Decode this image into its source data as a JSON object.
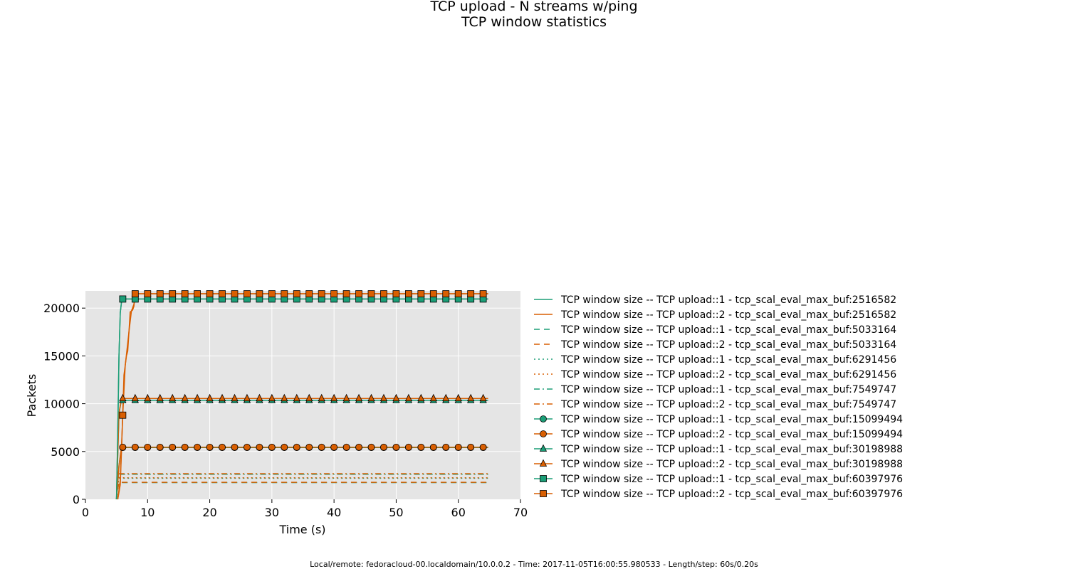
{
  "title": "TCP upload - N streams w/ping",
  "subtitle": "TCP window statistics",
  "footer": "Local/remote: fedoracloud-00.localdomain/10.0.0.2 - Time: 2017-11-05T16:00:55.980533 - Length/step: 60s/0.20s",
  "colors": {
    "teal": "#1b9e77",
    "orange": "#d95f02",
    "plot_bg": "#e5e5e5",
    "grid": "#ffffff"
  },
  "chart_data": {
    "type": "line",
    "xlabel": "Time (s)",
    "ylabel": "Packets",
    "xlim": [
      0,
      70
    ],
    "ylim": [
      0,
      21800
    ],
    "xticks": [
      0,
      10,
      20,
      30,
      40,
      50,
      60,
      70
    ],
    "yticks": [
      0,
      5000,
      10000,
      15000,
      20000
    ],
    "grid": true,
    "legend_position": "right-outside",
    "series": [
      {
        "name": "TCP window size -- TCP upload::1 - tcp_scal_eval_max_buf:2516582",
        "color": "#1b9e77",
        "dash": "solid",
        "marker": "none",
        "steady": 20950,
        "points": [
          [
            5,
            0
          ],
          [
            5.2,
            7000
          ],
          [
            5.4,
            15000
          ],
          [
            5.6,
            19500
          ],
          [
            5.8,
            20600
          ],
          [
            6,
            20950
          ],
          [
            64.8,
            20950
          ]
        ]
      },
      {
        "name": "TCP window size -- TCP upload::2 - tcp_scal_eval_max_buf:2516582",
        "color": "#d95f02",
        "dash": "solid",
        "marker": "none",
        "steady": 21500,
        "points": [
          [
            5.2,
            0
          ],
          [
            5.6,
            1500
          ],
          [
            5.8,
            5000
          ],
          [
            6,
            9000
          ],
          [
            6.2,
            13000
          ],
          [
            6.6,
            15000
          ],
          [
            6.8,
            15500
          ],
          [
            7,
            17500
          ],
          [
            7.2,
            19600
          ],
          [
            7.6,
            19800
          ],
          [
            7.8,
            20200
          ],
          [
            8,
            21500
          ],
          [
            64.8,
            21500
          ]
        ]
      },
      {
        "name": "TCP window size -- TCP upload::1 - tcp_scal_eval_max_buf:5033164",
        "color": "#1b9e77",
        "dash": "dash",
        "marker": "none",
        "steady": 1750,
        "points": [
          [
            5,
            0
          ],
          [
            5.2,
            1100
          ],
          [
            5.4,
            1750
          ],
          [
            64.8,
            1750
          ]
        ]
      },
      {
        "name": "TCP window size -- TCP upload::2 - tcp_scal_eval_max_buf:5033164",
        "color": "#d95f02",
        "dash": "dash",
        "marker": "none",
        "steady": 1780,
        "points": [
          [
            5,
            0
          ],
          [
            5.2,
            1100
          ],
          [
            5.4,
            1780
          ],
          [
            64.8,
            1780
          ]
        ]
      },
      {
        "name": "TCP window size -- TCP upload::1 - tcp_scal_eval_max_buf:6291456",
        "color": "#1b9e77",
        "dash": "dot",
        "marker": "none",
        "steady": 2200,
        "points": [
          [
            5,
            0
          ],
          [
            5.2,
            1500
          ],
          [
            5.4,
            2200
          ],
          [
            64.8,
            2200
          ]
        ]
      },
      {
        "name": "TCP window size -- TCP upload::2 - tcp_scal_eval_max_buf:6291456",
        "color": "#d95f02",
        "dash": "dot",
        "marker": "none",
        "steady": 2250,
        "points": [
          [
            5,
            0
          ],
          [
            5.2,
            1500
          ],
          [
            5.4,
            2250
          ],
          [
            64.8,
            2250
          ]
        ]
      },
      {
        "name": "TCP window size -- TCP upload::1 - tcp_scal_eval_max_buf:7549747",
        "color": "#1b9e77",
        "dash": "dashdot",
        "marker": "none",
        "steady": 2620,
        "points": [
          [
            5,
            0
          ],
          [
            5.2,
            1800
          ],
          [
            5.4,
            2620
          ],
          [
            64.8,
            2620
          ]
        ]
      },
      {
        "name": "TCP window size -- TCP upload::2 - tcp_scal_eval_max_buf:7549747",
        "color": "#d95f02",
        "dash": "dashdot",
        "marker": "none",
        "steady": 2680,
        "points": [
          [
            5,
            0
          ],
          [
            5.2,
            1800
          ],
          [
            5.4,
            2680
          ],
          [
            64.8,
            2680
          ]
        ]
      },
      {
        "name": "TCP window size -- TCP upload::1 - tcp_scal_eval_max_buf:15099494",
        "color": "#1b9e77",
        "dash": "solid",
        "marker": "circle",
        "steady": 5420,
        "points": [
          [
            5,
            0
          ],
          [
            5.4,
            3500
          ],
          [
            5.8,
            5420
          ],
          [
            64.8,
            5420
          ]
        ]
      },
      {
        "name": "TCP window size -- TCP upload::2 - tcp_scal_eval_max_buf:15099494",
        "color": "#d95f02",
        "dash": "solid",
        "marker": "circle",
        "steady": 5450,
        "points": [
          [
            5,
            0
          ],
          [
            5.4,
            3500
          ],
          [
            5.8,
            5450
          ],
          [
            64.8,
            5450
          ]
        ]
      },
      {
        "name": "TCP window size -- TCP upload::1 - tcp_scal_eval_max_buf:30198988",
        "color": "#1b9e77",
        "dash": "solid",
        "marker": "triangle",
        "steady": 10350,
        "points": [
          [
            5,
            0
          ],
          [
            5.4,
            9000
          ],
          [
            5.8,
            10350
          ],
          [
            64.8,
            10350
          ]
        ]
      },
      {
        "name": "TCP window size -- TCP upload::2 - tcp_scal_eval_max_buf:30198988",
        "color": "#d95f02",
        "dash": "solid",
        "marker": "triangle",
        "steady": 10550,
        "points": [
          [
            5,
            0
          ],
          [
            5.4,
            9000
          ],
          [
            5.8,
            10550
          ],
          [
            64.8,
            10550
          ]
        ]
      },
      {
        "name": "TCP window size -- TCP upload::1 - tcp_scal_eval_max_buf:60397976",
        "color": "#1b9e77",
        "dash": "solid",
        "marker": "square",
        "steady": 20950,
        "points": [
          [
            5,
            0
          ],
          [
            5.2,
            7000
          ],
          [
            5.4,
            15000
          ],
          [
            5.6,
            19500
          ],
          [
            5.8,
            20600
          ],
          [
            6,
            20950
          ],
          [
            64.8,
            20950
          ]
        ]
      },
      {
        "name": "TCP window size -- TCP upload::2 - tcp_scal_eval_max_buf:60397976",
        "color": "#d95f02",
        "dash": "solid",
        "marker": "square",
        "steady": 21500,
        "points": [
          [
            5.2,
            0
          ],
          [
            5.6,
            2000
          ],
          [
            6,
            8800
          ],
          [
            6.4,
            14000
          ],
          [
            7,
            17500
          ],
          [
            7.4,
            19700
          ],
          [
            7.8,
            20400
          ],
          [
            8,
            21500
          ],
          [
            64.8,
            21500
          ]
        ]
      }
    ],
    "marker_points": {
      "circle_1": [
        [
          6,
          5420
        ],
        [
          8,
          5420
        ],
        [
          10,
          5420
        ],
        [
          12,
          5420
        ],
        [
          14,
          5420
        ],
        [
          16,
          5420
        ],
        [
          18,
          5420
        ],
        [
          20,
          5420
        ],
        [
          22,
          5420
        ],
        [
          24,
          5420
        ],
        [
          26,
          5420
        ],
        [
          28,
          5420
        ],
        [
          30,
          5420
        ],
        [
          32,
          5420
        ],
        [
          34,
          5420
        ],
        [
          36,
          5420
        ],
        [
          38,
          5420
        ],
        [
          40,
          5420
        ],
        [
          42,
          5420
        ],
        [
          44,
          5420
        ],
        [
          46,
          5420
        ],
        [
          48,
          5420
        ],
        [
          50,
          5420
        ],
        [
          52,
          5420
        ],
        [
          54,
          5420
        ],
        [
          56,
          5420
        ],
        [
          58,
          5420
        ],
        [
          60,
          5420
        ],
        [
          62,
          5420
        ],
        [
          64,
          5420
        ]
      ],
      "circle_2": [
        [
          6,
          5450
        ],
        [
          8,
          5450
        ],
        [
          10,
          5450
        ],
        [
          12,
          5450
        ],
        [
          14,
          5450
        ],
        [
          16,
          5450
        ],
        [
          18,
          5450
        ],
        [
          20,
          5450
        ],
        [
          22,
          5450
        ],
        [
          24,
          5450
        ],
        [
          26,
          5450
        ],
        [
          28,
          5450
        ],
        [
          30,
          5450
        ],
        [
          32,
          5450
        ],
        [
          34,
          5450
        ],
        [
          36,
          5450
        ],
        [
          38,
          5450
        ],
        [
          40,
          5450
        ],
        [
          42,
          5450
        ],
        [
          44,
          5450
        ],
        [
          46,
          5450
        ],
        [
          48,
          5450
        ],
        [
          50,
          5450
        ],
        [
          52,
          5450
        ],
        [
          54,
          5450
        ],
        [
          56,
          5450
        ],
        [
          58,
          5450
        ],
        [
          60,
          5450
        ],
        [
          62,
          5450
        ],
        [
          64,
          5450
        ]
      ],
      "triangle_1": [
        [
          6,
          10350
        ],
        [
          8,
          10350
        ],
        [
          10,
          10350
        ],
        [
          12,
          10350
        ],
        [
          14,
          10350
        ],
        [
          16,
          10350
        ],
        [
          18,
          10350
        ],
        [
          20,
          10350
        ],
        [
          22,
          10350
        ],
        [
          24,
          10350
        ],
        [
          26,
          10350
        ],
        [
          28,
          10350
        ],
        [
          30,
          10350
        ],
        [
          32,
          10350
        ],
        [
          34,
          10350
        ],
        [
          36,
          10350
        ],
        [
          38,
          10350
        ],
        [
          40,
          10350
        ],
        [
          42,
          10350
        ],
        [
          44,
          10350
        ],
        [
          46,
          10350
        ],
        [
          48,
          10350
        ],
        [
          50,
          10350
        ],
        [
          52,
          10350
        ],
        [
          54,
          10350
        ],
        [
          56,
          10350
        ],
        [
          58,
          10350
        ],
        [
          60,
          10350
        ],
        [
          62,
          10350
        ],
        [
          64,
          10350
        ]
      ],
      "triangle_2": [
        [
          6,
          10550
        ],
        [
          8,
          10550
        ],
        [
          10,
          10550
        ],
        [
          12,
          10550
        ],
        [
          14,
          10550
        ],
        [
          16,
          10550
        ],
        [
          18,
          10550
        ],
        [
          20,
          10550
        ],
        [
          22,
          10550
        ],
        [
          24,
          10550
        ],
        [
          26,
          10550
        ],
        [
          28,
          10550
        ],
        [
          30,
          10550
        ],
        [
          32,
          10550
        ],
        [
          34,
          10550
        ],
        [
          36,
          10550
        ],
        [
          38,
          10550
        ],
        [
          40,
          10550
        ],
        [
          42,
          10550
        ],
        [
          44,
          10550
        ],
        [
          46,
          10550
        ],
        [
          48,
          10550
        ],
        [
          50,
          10550
        ],
        [
          52,
          10550
        ],
        [
          54,
          10550
        ],
        [
          56,
          10550
        ],
        [
          58,
          10550
        ],
        [
          60,
          10550
        ],
        [
          62,
          10550
        ],
        [
          64,
          10550
        ]
      ],
      "square_1": [
        [
          6,
          20950
        ],
        [
          8,
          20950
        ],
        [
          10,
          20950
        ],
        [
          12,
          20950
        ],
        [
          14,
          20950
        ],
        [
          16,
          20950
        ],
        [
          18,
          20950
        ],
        [
          20,
          20950
        ],
        [
          22,
          20950
        ],
        [
          24,
          20950
        ],
        [
          26,
          20950
        ],
        [
          28,
          20950
        ],
        [
          30,
          20950
        ],
        [
          32,
          20950
        ],
        [
          34,
          20950
        ],
        [
          36,
          20950
        ],
        [
          38,
          20950
        ],
        [
          40,
          20950
        ],
        [
          42,
          20950
        ],
        [
          44,
          20950
        ],
        [
          46,
          20950
        ],
        [
          48,
          20950
        ],
        [
          50,
          20950
        ],
        [
          52,
          20950
        ],
        [
          54,
          20950
        ],
        [
          56,
          20950
        ],
        [
          58,
          20950
        ],
        [
          60,
          20950
        ],
        [
          62,
          20950
        ],
        [
          64,
          20950
        ]
      ],
      "square_2": [
        [
          6,
          8800
        ],
        [
          8,
          21500
        ],
        [
          10,
          21500
        ],
        [
          12,
          21500
        ],
        [
          14,
          21500
        ],
        [
          16,
          21500
        ],
        [
          18,
          21500
        ],
        [
          20,
          21500
        ],
        [
          22,
          21500
        ],
        [
          24,
          21500
        ],
        [
          26,
          21500
        ],
        [
          28,
          21500
        ],
        [
          30,
          21500
        ],
        [
          32,
          21500
        ],
        [
          34,
          21500
        ],
        [
          36,
          21500
        ],
        [
          38,
          21500
        ],
        [
          40,
          21500
        ],
        [
          42,
          21500
        ],
        [
          44,
          21500
        ],
        [
          46,
          21500
        ],
        [
          48,
          21500
        ],
        [
          50,
          21500
        ],
        [
          52,
          21500
        ],
        [
          54,
          21500
        ],
        [
          56,
          21500
        ],
        [
          58,
          21500
        ],
        [
          60,
          21500
        ],
        [
          62,
          21500
        ],
        [
          64,
          21500
        ]
      ]
    }
  }
}
